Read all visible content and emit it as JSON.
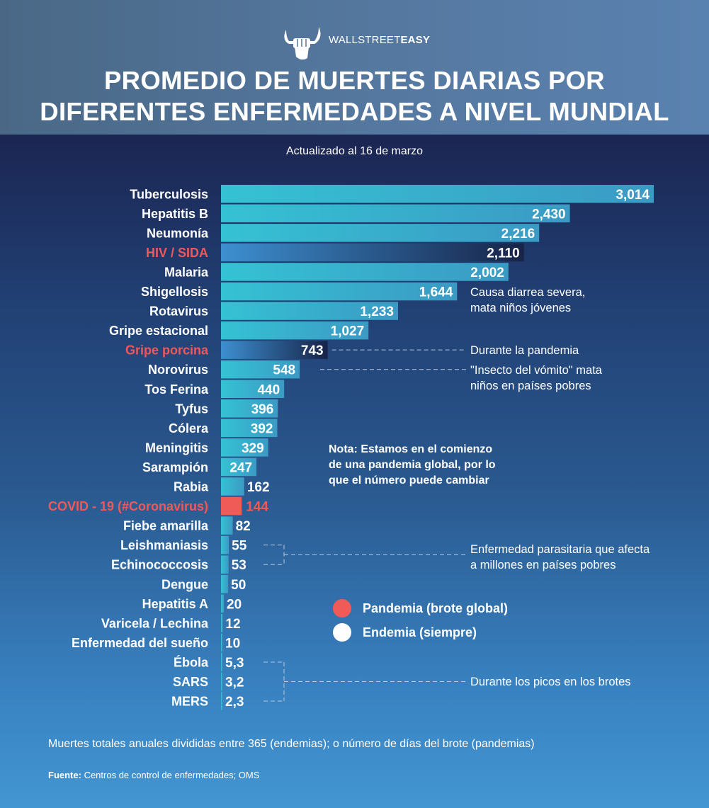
{
  "brand": {
    "light": "WALLSTREET",
    "bold": "EASY"
  },
  "header": {
    "title_line1": "PROMEDIO DE MUERTES DIARIAS POR",
    "title_line2": "DIFERENTES ENFERMEDADES A NIVEL MUNDIAL",
    "subtitle": "Actualizado al 16 de marzo"
  },
  "colors": {
    "endemic_bar_start": "#35c2d4",
    "endemic_bar_end": "#3b9ac4",
    "pandemic_bar_start": "#3d8fd0",
    "pandemic_bar_end": "#172348",
    "pandemic_label": "#f0595a",
    "covid_bar": "#f05a57",
    "label_text": "#ffffff"
  },
  "chart_data": {
    "type": "bar",
    "orientation": "horizontal",
    "title": "PROMEDIO DE MUERTES DIARIAS POR DIFERENTES ENFERMEDADES A NIVEL MUNDIAL",
    "subtitle": "Actualizado al 16 de marzo",
    "xlabel": "",
    "ylabel": "",
    "xlim": [
      0,
      3014
    ],
    "grid": false,
    "categories": [
      "Tuberculosis",
      "Hepatitis B",
      "Neumonía",
      "HIV / SIDA",
      "Malaria",
      "Shigellosis",
      "Rotavirus",
      "Gripe estacional",
      "Gripe porcina",
      "Norovirus",
      "Tos Ferina",
      "Tyfus",
      "Cólera",
      "Meningitis",
      "Sarampión",
      "Rabia",
      "COVID - 19 (#Coronavirus)",
      "Fiebe amarilla",
      "Leishmaniasis",
      "Echinococcosis",
      "Dengue",
      "Hepatitis A",
      "Varicela / Lechina",
      "Enfermedad del sueño",
      "Ébola",
      "SARS",
      "MERS"
    ],
    "values": [
      3014,
      2430,
      2216,
      2110,
      2002,
      1644,
      1233,
      1027,
      743,
      548,
      440,
      396,
      392,
      329,
      247,
      162,
      144,
      82,
      55,
      53,
      50,
      20,
      12,
      10,
      5.3,
      3.2,
      2.3
    ],
    "value_labels": [
      "3,014",
      "2,430",
      "2,216",
      "2,110",
      "2,002",
      "1,644",
      "1,233",
      "1,027",
      "743",
      "548",
      "440",
      "396",
      "392",
      "329",
      "247",
      "162",
      "144",
      "82",
      "55",
      "53",
      "50",
      "20",
      "12",
      "10",
      "5,3",
      "3,2",
      "2,3"
    ],
    "kinds": [
      "endemic",
      "endemic",
      "endemic",
      "pandemic",
      "endemic",
      "endemic",
      "endemic",
      "endemic",
      "pandemic",
      "endemic",
      "endemic",
      "endemic",
      "endemic",
      "endemic",
      "endemic",
      "endemic",
      "covid",
      "endemic",
      "endemic",
      "endemic",
      "endemic",
      "endemic",
      "endemic",
      "endemic",
      "endemic",
      "endemic",
      "endemic"
    ],
    "legend": [
      {
        "label": "Pandemia (brote global)",
        "color": "#f05a57"
      },
      {
        "label": "Endemia (siempre)",
        "color": "#ffffff"
      }
    ],
    "legend_position": "right-center",
    "annotations": [
      {
        "text": [
          "Causa diarrea severa,",
          "mata niños jóvenes"
        ],
        "target": "Shigellosis"
      },
      {
        "text": [
          "Durante la pandemia"
        ],
        "target": "Gripe porcina"
      },
      {
        "text": [
          "\"Insecto del vómito\" mata",
          "niños en países pobres"
        ],
        "target": "Norovirus"
      },
      {
        "text": [
          "Enfermedad parasitaria que afecta",
          "a millones en países pobres"
        ],
        "target": [
          "Leishmaniasis",
          "Echinococcosis"
        ]
      },
      {
        "text": [
          "Durante los picos en los brotes"
        ],
        "target": [
          "Ébola",
          "SARS",
          "MERS"
        ]
      }
    ]
  },
  "note": [
    "Nota: Estamos en el comienzo",
    "de una pandemia global, por lo",
    "que el número puede cambiar"
  ],
  "footer": {
    "footnote": "Muertes totales anuales divididas entre 365 (endemias); o número de días del brote (pandemias)",
    "source_label": "Fuente:",
    "source_text": " Centros de control de enfermedades; OMS"
  }
}
